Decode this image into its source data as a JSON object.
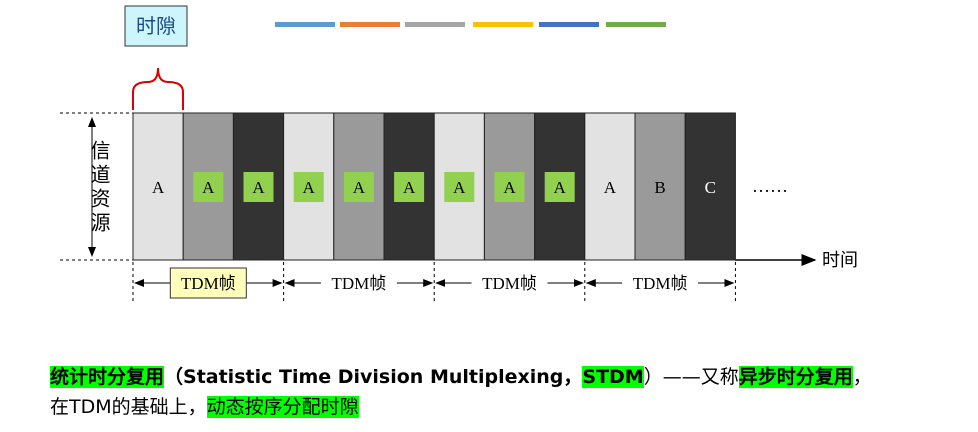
{
  "label_box": "时隙",
  "slots": [
    {
      "label": "A",
      "highlight": false
    },
    {
      "label": "A",
      "highlight": true
    },
    {
      "label": "A",
      "highlight": true
    },
    {
      "label": "A",
      "highlight": true
    },
    {
      "label": "A",
      "highlight": true
    },
    {
      "label": "A",
      "highlight": true
    },
    {
      "label": "A",
      "highlight": true
    },
    {
      "label": "A",
      "highlight": true
    },
    {
      "label": "A",
      "highlight": true
    },
    {
      "label": "A",
      "highlight": false
    },
    {
      "label": "B",
      "highlight": false
    },
    {
      "label": "C",
      "highlight": false
    }
  ],
  "ellipsis": "……",
  "y_axis_label": "信道资源",
  "x_axis_label": "时间",
  "frames": [
    "TDM帧",
    "TDM帧",
    "TDM帧",
    "TDM帧"
  ],
  "paragraph": {
    "line1": [
      {
        "text": "统计时分复用",
        "highlight": true,
        "bold": true
      },
      {
        "text": "（Statistic Time Division Multiplexing，",
        "highlight": false,
        "bold": true
      },
      {
        "text": "STDM",
        "highlight": true,
        "bold": true
      },
      {
        "text": "）——又称",
        "highlight": false,
        "bold": false
      },
      {
        "text": "异步时分复用",
        "highlight": true,
        "bold": true
      },
      {
        "text": "，",
        "highlight": false,
        "bold": false
      }
    ],
    "line2": [
      {
        "text": "在TDM的基础上，",
        "highlight": false,
        "bold": false
      },
      {
        "text": "动态按序分配时隙",
        "highlight": true,
        "bold": false
      }
    ]
  }
}
